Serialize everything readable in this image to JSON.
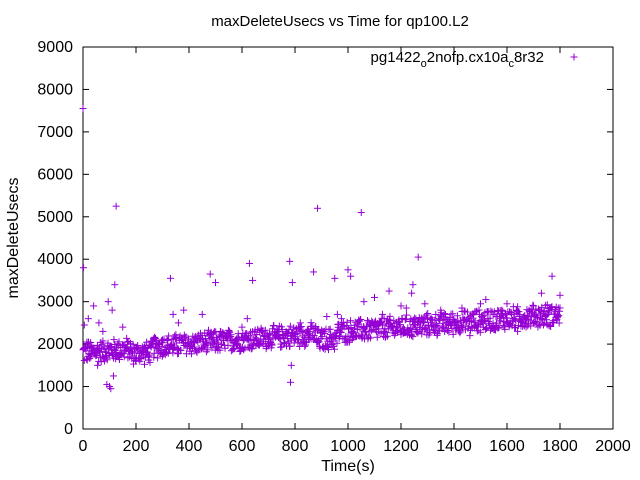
{
  "chart_data": {
    "type": "scatter",
    "title": "maxDeleteUsecs vs Time for qp100.L2",
    "xlabel": "Time(s)",
    "ylabel": "maxDeleteUsecs",
    "xlim": [
      0,
      2000
    ],
    "ylim": [
      0,
      9000
    ],
    "x_ticks": [
      "0",
      "200",
      "400",
      "600",
      "800",
      "1000",
      "1200",
      "1400",
      "1600",
      "1800",
      "2000"
    ],
    "y_ticks": [
      "0",
      "1000",
      "2000",
      "3000",
      "4000",
      "5000",
      "6000",
      "7000",
      "8000",
      "9000"
    ],
    "grid": false,
    "legend_position": "top-right",
    "marker": "+",
    "series": [
      {
        "name": "pg1422_o2nofp.cx10a_c8r32",
        "legend_text": "pg1422",
        "legend_sub1": "o",
        "legend_mid": "2nofp.cx10a",
        "legend_sub2": "c",
        "legend_end": "8r32",
        "color": "#9400d3",
        "points": [
          [
            0,
            7550
          ],
          [
            2,
            3800
          ],
          [
            5,
            2450
          ],
          [
            8,
            1900
          ],
          [
            15,
            2050
          ],
          [
            20,
            2600
          ],
          [
            30,
            1700
          ],
          [
            40,
            2900
          ],
          [
            55,
            1500
          ],
          [
            60,
            2500
          ],
          [
            75,
            2300
          ],
          [
            90,
            1050
          ],
          [
            95,
            3000
          ],
          [
            100,
            1000
          ],
          [
            105,
            950
          ],
          [
            110,
            2800
          ],
          [
            115,
            1250
          ],
          [
            120,
            3400
          ],
          [
            125,
            5250
          ],
          [
            135,
            1700
          ],
          [
            150,
            2400
          ],
          [
            180,
            1900
          ],
          [
            200,
            1600
          ],
          [
            240,
            1800
          ],
          [
            270,
            2150
          ],
          [
            300,
            2100
          ],
          [
            330,
            3550
          ],
          [
            340,
            2700
          ],
          [
            360,
            2500
          ],
          [
            380,
            2800
          ],
          [
            410,
            2050
          ],
          [
            450,
            2700
          ],
          [
            480,
            3650
          ],
          [
            500,
            3450
          ],
          [
            520,
            2300
          ],
          [
            540,
            2200
          ],
          [
            600,
            2400
          ],
          [
            620,
            2600
          ],
          [
            628,
            3900
          ],
          [
            640,
            3500
          ],
          [
            700,
            2150
          ],
          [
            740,
            2300
          ],
          [
            780,
            3950
          ],
          [
            783,
            1100
          ],
          [
            786,
            1500
          ],
          [
            790,
            3450
          ],
          [
            820,
            2500
          ],
          [
            850,
            2350
          ],
          [
            870,
            3700
          ],
          [
            885,
            5200
          ],
          [
            920,
            2650
          ],
          [
            950,
            3550
          ],
          [
            960,
            2700
          ],
          [
            975,
            2600
          ],
          [
            1000,
            3750
          ],
          [
            1010,
            3600
          ],
          [
            1050,
            5100
          ],
          [
            1060,
            3000
          ],
          [
            1100,
            3100
          ],
          [
            1130,
            2700
          ],
          [
            1155,
            3250
          ],
          [
            1200,
            2900
          ],
          [
            1220,
            2850
          ],
          [
            1240,
            3200
          ],
          [
            1245,
            3400
          ],
          [
            1265,
            4050
          ],
          [
            1290,
            2950
          ],
          [
            1300,
            2600
          ],
          [
            1350,
            2800
          ],
          [
            1400,
            2500
          ],
          [
            1430,
            2850
          ],
          [
            1460,
            2200
          ],
          [
            1500,
            2950
          ],
          [
            1520,
            3050
          ],
          [
            1550,
            2700
          ],
          [
            1580,
            2800
          ],
          [
            1600,
            2950
          ],
          [
            1640,
            2300
          ],
          [
            1680,
            2650
          ],
          [
            1700,
            2900
          ],
          [
            1730,
            3200
          ],
          [
            1760,
            2850
          ],
          [
            1770,
            3600
          ],
          [
            1790,
            2700
          ],
          [
            1800,
            3150
          ]
        ],
        "trend": {
          "note_in_data_units": "dense band of points following a rising level",
          "x_start": 0,
          "y_start": 1800,
          "x_mid": 700,
          "y_mid": 2150,
          "x_end": 1800,
          "y_end": 2700,
          "spread": 300
        }
      }
    ]
  }
}
